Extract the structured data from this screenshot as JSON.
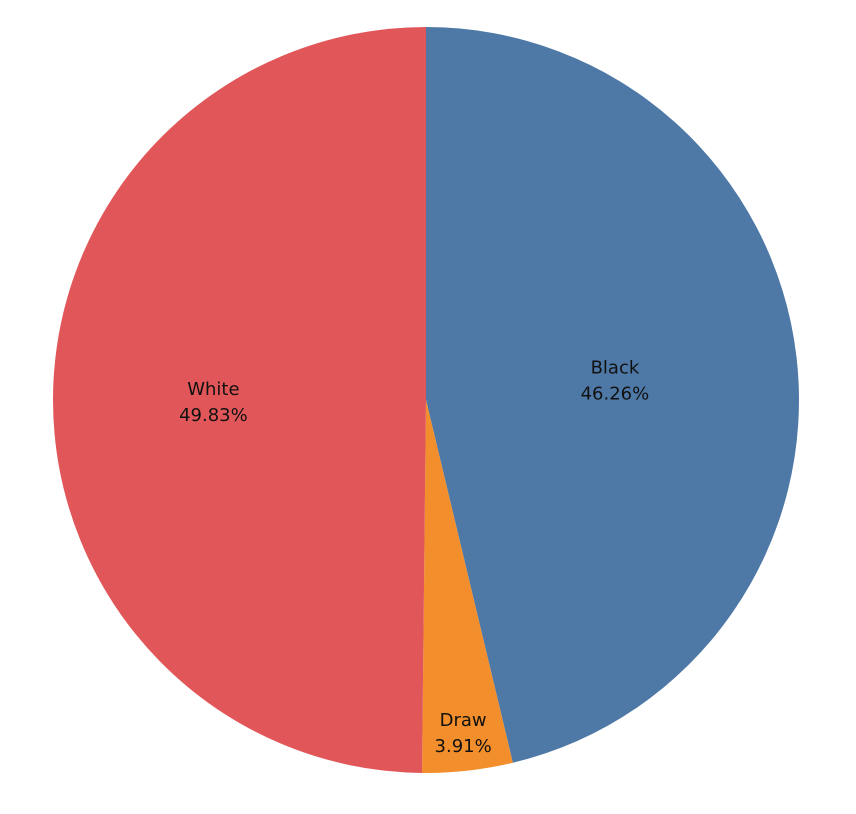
{
  "chart_data": {
    "type": "pie",
    "start_angle_deg": 0,
    "direction": "clockwise",
    "slices": [
      {
        "label": "Black",
        "value": 46.26,
        "value_label": "46.26%",
        "color": "#4E79A7"
      },
      {
        "label": "Draw",
        "value": 3.91,
        "value_label": "3.91%",
        "color": "#F28E2B"
      },
      {
        "label": "White",
        "value": 49.83,
        "value_label": "49.83%",
        "color": "#E15759"
      }
    ]
  }
}
